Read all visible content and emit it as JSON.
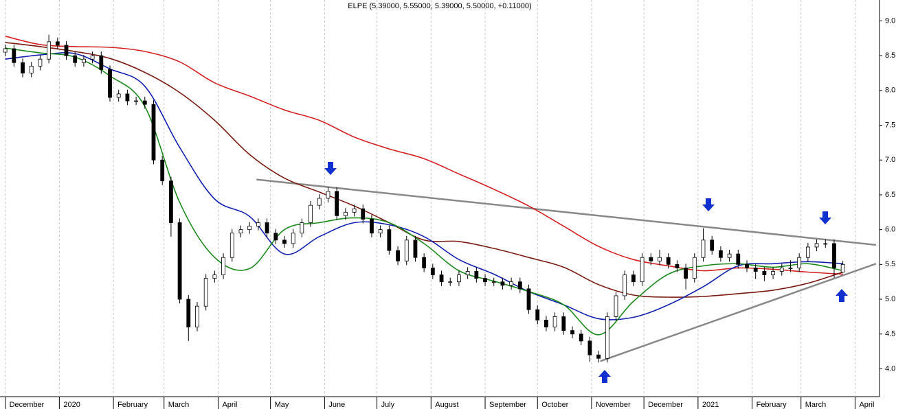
{
  "chart_data": {
    "type": "candlestick",
    "title": "ELPE (5.39000, 5.55000, 5.39000, 5.50000, +0.11000)",
    "x": [
      0,
      5,
      10,
      15,
      20,
      25,
      30,
      35,
      40,
      45,
      50,
      55,
      60,
      65,
      70,
      75,
      80,
      85,
      90,
      95,
      100,
      105,
      110,
      115,
      120,
      125,
      130,
      135,
      140,
      145,
      150,
      155,
      160,
      165,
      170,
      175,
      180,
      185,
      190,
      195,
      200,
      205,
      210,
      215,
      220,
      225,
      230,
      235,
      240,
      245,
      250,
      255,
      260,
      265,
      270,
      275,
      280,
      285,
      290,
      295,
      300,
      305,
      310,
      315,
      320,
      325,
      330,
      335,
      340,
      345,
      350,
      355,
      360,
      365,
      370,
      375,
      380,
      385,
      390,
      395,
      400,
      405,
      410,
      415,
      420,
      425,
      430,
      435,
      440,
      445,
      450,
      455,
      460,
      465,
      470,
      475,
      480
    ],
    "open": [
      8.55,
      8.6,
      8.4,
      8.25,
      8.35,
      8.45,
      8.7,
      8.65,
      8.5,
      8.4,
      8.45,
      8.5,
      8.3,
      7.9,
      7.95,
      7.85,
      7.85,
      7.8,
      7.0,
      6.7,
      6.1,
      5.0,
      4.6,
      4.9,
      5.3,
      5.35,
      5.6,
      5.95,
      6.0,
      6.05,
      6.1,
      5.95,
      5.85,
      5.8,
      5.95,
      6.1,
      6.35,
      6.45,
      6.55,
      6.2,
      6.25,
      6.3,
      6.15,
      5.95,
      6.0,
      5.7,
      5.55,
      5.85,
      5.6,
      5.45,
      5.35,
      5.25,
      5.25,
      5.35,
      5.4,
      5.3,
      5.25,
      5.25,
      5.2,
      5.25,
      5.15,
      4.85,
      4.7,
      4.6,
      4.75,
      4.55,
      4.5,
      4.4,
      4.2,
      4.15,
      4.75,
      5.05,
      5.35,
      5.25,
      5.6,
      5.55,
      5.6,
      5.5,
      5.45,
      5.3,
      5.6,
      5.85,
      5.7,
      5.6,
      5.65,
      5.5,
      5.45,
      5.4,
      5.35,
      5.4,
      5.45,
      5.45,
      5.6,
      5.75,
      5.8,
      5.8,
      5.39
    ],
    "high": [
      8.66,
      8.66,
      8.46,
      8.41,
      8.51,
      8.8,
      8.76,
      8.71,
      8.56,
      8.51,
      8.56,
      8.56,
      8.36,
      8.01,
      8.01,
      7.91,
      7.91,
      7.86,
      7.06,
      6.76,
      6.16,
      5.06,
      4.96,
      5.36,
      5.41,
      5.66,
      6.01,
      6.06,
      6.11,
      6.16,
      6.16,
      6.01,
      5.91,
      6.01,
      6.16,
      6.41,
      6.51,
      6.61,
      6.61,
      6.31,
      6.36,
      6.36,
      6.21,
      6.06,
      6.06,
      5.76,
      5.91,
      5.91,
      5.66,
      5.51,
      5.41,
      5.31,
      5.41,
      5.46,
      5.46,
      5.36,
      5.31,
      5.31,
      5.31,
      5.31,
      5.21,
      4.91,
      4.76,
      4.81,
      4.81,
      4.61,
      4.56,
      4.46,
      4.26,
      4.81,
      5.11,
      5.41,
      5.41,
      5.66,
      5.66,
      5.71,
      5.66,
      5.56,
      5.51,
      5.66,
      6.02,
      5.91,
      5.76,
      5.71,
      5.71,
      5.56,
      5.51,
      5.46,
      5.46,
      5.51,
      5.56,
      5.66,
      5.81,
      5.86,
      5.86,
      5.86,
      5.55
    ],
    "low": [
      8.49,
      8.34,
      8.19,
      8.19,
      8.29,
      8.39,
      8.59,
      8.44,
      8.34,
      8.34,
      8.39,
      8.24,
      7.84,
      7.84,
      7.79,
      7.79,
      7.74,
      6.94,
      6.64,
      5.9,
      4.94,
      4.4,
      4.54,
      4.84,
      5.24,
      5.29,
      5.54,
      5.89,
      5.94,
      5.99,
      5.89,
      5.79,
      5.74,
      5.74,
      5.89,
      6.04,
      6.29,
      6.39,
      6.14,
      6.14,
      6.19,
      6.09,
      5.89,
      5.89,
      5.64,
      5.49,
      5.49,
      5.54,
      5.39,
      5.29,
      5.19,
      5.19,
      5.19,
      5.29,
      5.24,
      5.19,
      5.19,
      5.14,
      5.14,
      5.09,
      4.79,
      4.64,
      4.54,
      4.54,
      4.49,
      4.44,
      4.34,
      4.1,
      4.09,
      4.09,
      4.69,
      4.99,
      5.19,
      5.19,
      5.49,
      5.49,
      5.44,
      5.39,
      5.14,
      5.24,
      5.54,
      5.64,
      5.54,
      5.54,
      5.44,
      5.39,
      5.29,
      5.26,
      5.29,
      5.34,
      5.39,
      5.39,
      5.54,
      5.69,
      5.74,
      5.31,
      5.39
    ],
    "close": [
      8.6,
      8.4,
      8.25,
      8.35,
      8.45,
      8.7,
      8.65,
      8.5,
      8.4,
      8.45,
      8.5,
      8.3,
      7.9,
      7.95,
      7.85,
      7.85,
      7.8,
      7.0,
      6.7,
      6.1,
      5.0,
      4.6,
      4.9,
      5.3,
      5.35,
      5.6,
      5.95,
      6.0,
      6.05,
      6.1,
      5.95,
      5.85,
      5.8,
      5.95,
      6.1,
      6.35,
      6.45,
      6.55,
      6.2,
      6.25,
      6.3,
      6.15,
      5.95,
      6.0,
      5.7,
      5.55,
      5.85,
      5.6,
      5.45,
      5.35,
      5.25,
      5.25,
      5.35,
      5.4,
      5.3,
      5.25,
      5.25,
      5.2,
      5.25,
      5.15,
      4.85,
      4.7,
      4.6,
      4.75,
      4.55,
      4.5,
      4.4,
      4.2,
      4.15,
      4.75,
      5.05,
      5.35,
      5.25,
      5.6,
      5.55,
      5.6,
      5.5,
      5.45,
      5.3,
      5.6,
      5.85,
      5.7,
      5.6,
      5.65,
      5.5,
      5.45,
      5.4,
      5.35,
      5.4,
      5.45,
      5.45,
      5.6,
      5.75,
      5.8,
      5.8,
      5.45,
      5.5
    ],
    "up_color": "#ffffff",
    "down_color": "#000000",
    "series": [
      {
        "color": "#d42020",
        "x": [
          0,
          20,
          40,
          60,
          80,
          100,
          120,
          140,
          160,
          180,
          200,
          220,
          240,
          260,
          280,
          300,
          320,
          340,
          360,
          380,
          400,
          420,
          440,
          460,
          480
        ],
        "values": [
          8.78,
          8.66,
          8.63,
          8.62,
          8.56,
          8.41,
          8.11,
          7.92,
          7.72,
          7.57,
          7.33,
          7.16,
          7.02,
          6.8,
          6.58,
          6.34,
          6.05,
          5.76,
          5.57,
          5.48,
          5.41,
          5.45,
          5.43,
          5.39,
          5.36
        ]
      },
      {
        "color": "#7a1a10",
        "x": [
          0,
          20,
          40,
          60,
          80,
          100,
          120,
          140,
          160,
          180,
          200,
          220,
          240,
          260,
          280,
          300,
          320,
          340,
          360,
          380,
          400,
          420,
          440,
          460,
          480
        ],
        "values": [
          8.69,
          8.63,
          8.56,
          8.46,
          8.26,
          7.97,
          7.57,
          7.08,
          6.74,
          6.54,
          6.34,
          6.1,
          5.85,
          5.83,
          5.73,
          5.6,
          5.46,
          5.21,
          5.06,
          5.03,
          5.04,
          5.08,
          5.13,
          5.23,
          5.39
        ]
      },
      {
        "color": "#1020b0",
        "x": [
          0,
          20,
          40,
          60,
          80,
          100,
          120,
          140,
          160,
          180,
          200,
          220,
          240,
          260,
          280,
          300,
          320,
          340,
          360,
          380,
          400,
          420,
          440,
          460,
          480
        ],
        "values": [
          8.45,
          8.51,
          8.53,
          8.31,
          8.06,
          7.18,
          6.44,
          6.19,
          5.65,
          5.9,
          6.1,
          6.07,
          5.9,
          5.57,
          5.36,
          5.11,
          4.92,
          4.72,
          4.74,
          4.92,
          5.18,
          5.48,
          5.51,
          5.54,
          5.51
        ]
      },
      {
        "color": "#1a8a1a",
        "x": [
          0,
          20,
          40,
          60,
          80,
          100,
          120,
          140,
          160,
          180,
          200,
          220,
          240,
          260,
          280,
          300,
          320,
          340,
          360,
          380,
          400,
          420,
          440,
          460,
          480
        ],
        "values": [
          8.61,
          8.54,
          8.48,
          8.21,
          7.77,
          6.39,
          5.6,
          5.44,
          6.0,
          6.1,
          6.17,
          6.1,
          5.8,
          5.41,
          5.26,
          5.11,
          4.92,
          4.49,
          4.97,
          5.36,
          5.48,
          5.51,
          5.46,
          5.51,
          5.41
        ]
      }
    ],
    "lines": [
      {
        "color": "#888888",
        "x": [
          144,
          499
        ],
        "values": [
          6.72,
          5.78
        ]
      },
      {
        "color": "#888888",
        "x": [
          341,
          499
        ],
        "values": [
          4.11,
          5.51
        ]
      }
    ],
    "xlim": [
      -3,
      501
    ],
    "xticks": [
      {
        "value": 0,
        "label": "December"
      },
      {
        "value": 31,
        "label": "2020"
      },
      {
        "value": 62,
        "label": "February"
      },
      {
        "value": 91,
        "label": "March"
      },
      {
        "value": 122,
        "label": "April"
      },
      {
        "value": 152,
        "label": "May"
      },
      {
        "value": 183,
        "label": "June"
      },
      {
        "value": 213,
        "label": "July"
      },
      {
        "value": 244,
        "label": "August"
      },
      {
        "value": 275,
        "label": "September"
      },
      {
        "value": 305,
        "label": "October"
      },
      {
        "value": 336,
        "label": "November"
      },
      {
        "value": 366,
        "label": "December"
      },
      {
        "value": 397,
        "label": "2021"
      },
      {
        "value": 428,
        "label": "February"
      },
      {
        "value": 456,
        "label": "March"
      },
      {
        "value": 487,
        "label": "April"
      }
    ],
    "ylim": [
      3.6,
      9.3
    ],
    "yticks": [
      {
        "value": 4,
        "label": "4.0"
      },
      {
        "value": 4.5,
        "label": "4.5"
      },
      {
        "value": 5,
        "label": "5.0"
      },
      {
        "value": 5.5,
        "label": "5.5"
      },
      {
        "value": 6,
        "label": "6.0"
      },
      {
        "value": 6.5,
        "label": "6.5"
      },
      {
        "value": 7,
        "label": "7.0"
      },
      {
        "value": 7.5,
        "label": "7.5"
      },
      {
        "value": 8,
        "label": "8.0"
      },
      {
        "value": 8.5,
        "label": "8.5"
      },
      {
        "value": 9,
        "label": "9.0"
      }
    ],
    "grid": true
  }
}
